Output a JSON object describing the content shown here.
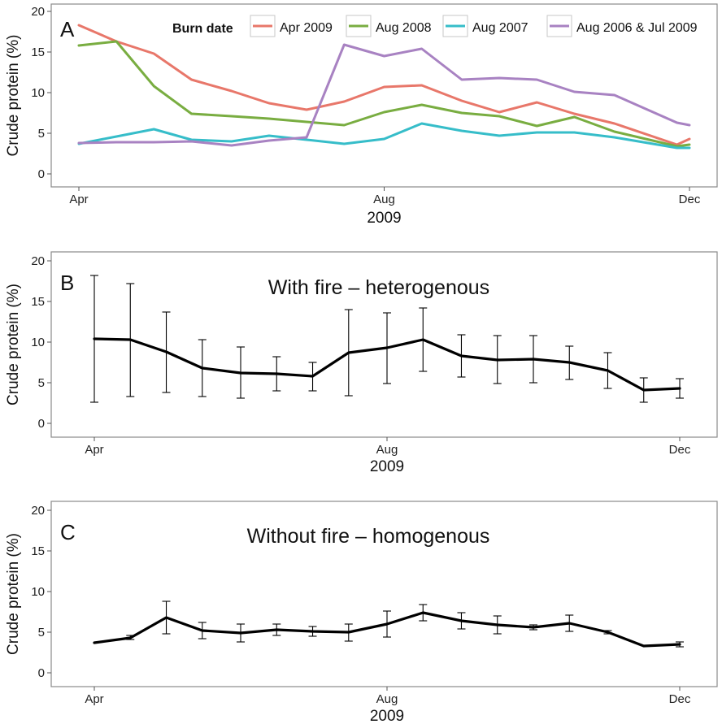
{
  "colors": {
    "apr_2009": "#E8776A",
    "aug_2008": "#79AD41",
    "aug_2007": "#36BDC9",
    "aug_2006_jul_2009": "#A882C2",
    "mean_line": "#000000"
  },
  "chart_data": [
    {
      "panel": "A",
      "type": "line",
      "xlabel": "2009",
      "ylabel": "Crude protein (%)",
      "x_ticks": [
        "Apr",
        "Aug",
        "Dec"
      ],
      "y_ticks": [
        "0",
        "5",
        "10",
        "15",
        "20"
      ],
      "ylim": [
        0,
        20
      ],
      "legend_title": "Burn date",
      "legend_placement": "top",
      "x": [
        "2009-04-01",
        "2009-04-16",
        "2009-05-01",
        "2009-05-16",
        "2009-06-01",
        "2009-06-16",
        "2009-07-01",
        "2009-07-16",
        "2009-08-01",
        "2009-08-16",
        "2009-09-01",
        "2009-09-16",
        "2009-10-01",
        "2009-10-16",
        "2009-11-01",
        "2009-11-26",
        "2009-12-01"
      ],
      "series": [
        {
          "name": "Apr 2009",
          "values": [
            18.3,
            16.3,
            14.8,
            11.6,
            10.2,
            8.7,
            7.9,
            8.9,
            10.7,
            10.9,
            9.0,
            7.6,
            8.8,
            7.4,
            6.2,
            3.6,
            4.3
          ]
        },
        {
          "name": "Aug 2008",
          "values": [
            15.8,
            16.3,
            10.8,
            7.4,
            7.1,
            6.8,
            6.4,
            6.0,
            7.6,
            8.5,
            7.5,
            7.1,
            5.9,
            7.0,
            5.2,
            3.4,
            3.6
          ]
        },
        {
          "name": "Aug 2007",
          "values": [
            3.7,
            4.6,
            5.5,
            4.2,
            4.0,
            4.7,
            4.2,
            3.7,
            4.3,
            6.2,
            5.3,
            4.7,
            5.1,
            5.1,
            4.5,
            3.2,
            3.2
          ]
        },
        {
          "name": "Aug 2006 & Jul 2009",
          "values": [
            3.8,
            3.9,
            3.9,
            4.0,
            3.5,
            4.1,
            4.5,
            15.9,
            14.5,
            15.4,
            11.6,
            11.8,
            11.6,
            10.1,
            9.7,
            6.3,
            6.0
          ]
        }
      ]
    },
    {
      "panel": "B",
      "type": "line",
      "subtitle": "With fire – heterogenous",
      "xlabel": "2009",
      "ylabel": "Crude protein (%)",
      "x_ticks": [
        "Apr",
        "Aug",
        "Dec"
      ],
      "y_ticks": [
        "0",
        "5",
        "10",
        "15",
        "20"
      ],
      "ylim": [
        0,
        20
      ],
      "x": [
        "2009-04-01",
        "2009-04-16",
        "2009-05-01",
        "2009-05-16",
        "2009-06-01",
        "2009-06-16",
        "2009-07-01",
        "2009-07-16",
        "2009-08-01",
        "2009-08-16",
        "2009-09-01",
        "2009-09-16",
        "2009-10-01",
        "2009-10-16",
        "2009-11-01",
        "2009-11-16",
        "2009-12-01"
      ],
      "values": [
        10.4,
        10.3,
        8.8,
        6.8,
        6.2,
        6.1,
        5.8,
        8.7,
        9.3,
        10.3,
        8.3,
        7.8,
        7.9,
        7.5,
        6.5,
        4.1,
        4.3
      ],
      "err_low": [
        2.6,
        3.3,
        3.8,
        3.3,
        3.1,
        4.0,
        4.0,
        3.4,
        4.9,
        6.4,
        5.7,
        4.9,
        5.0,
        5.4,
        4.3,
        2.6,
        3.1
      ],
      "err_high": [
        18.2,
        17.2,
        13.7,
        10.3,
        9.4,
        8.2,
        7.5,
        14.0,
        13.6,
        14.2,
        10.9,
        10.8,
        10.8,
        9.5,
        8.7,
        5.6,
        5.5
      ]
    },
    {
      "panel": "C",
      "type": "line",
      "subtitle": "Without fire – homogenous",
      "xlabel": "2009",
      "ylabel": "Crude protein (%)",
      "x_ticks": [
        "Apr",
        "Aug",
        "Dec"
      ],
      "y_ticks": [
        "0",
        "5",
        "10",
        "15",
        "20"
      ],
      "ylim": [
        0,
        20
      ],
      "x": [
        "2009-04-01",
        "2009-04-16",
        "2009-05-01",
        "2009-05-16",
        "2009-06-01",
        "2009-06-16",
        "2009-07-01",
        "2009-07-16",
        "2009-08-01",
        "2009-08-16",
        "2009-09-01",
        "2009-09-16",
        "2009-10-01",
        "2009-10-16",
        "2009-11-01",
        "2009-11-16",
        "2009-12-01"
      ],
      "values": [
        3.7,
        4.3,
        6.8,
        5.2,
        4.9,
        5.3,
        5.1,
        5.0,
        6.0,
        7.4,
        6.4,
        5.9,
        5.6,
        6.1,
        5.0,
        3.3,
        3.5
      ],
      "err_low": [
        3.7,
        4.1,
        4.8,
        4.2,
        3.8,
        4.6,
        4.5,
        3.9,
        4.4,
        6.4,
        5.4,
        4.8,
        5.3,
        5.1,
        4.8,
        3.3,
        3.2
      ],
      "err_high": [
        3.7,
        4.6,
        8.8,
        6.2,
        6.0,
        6.0,
        5.7,
        6.0,
        7.6,
        8.4,
        7.4,
        7.0,
        5.9,
        7.1,
        5.2,
        3.3,
        3.8
      ]
    }
  ]
}
